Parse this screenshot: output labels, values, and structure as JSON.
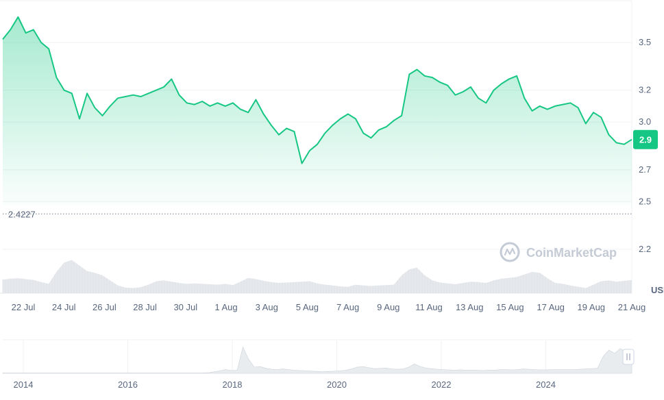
{
  "watermark": "CoinMarketCap",
  "currency": "USD",
  "colors": {
    "line": "#16c784",
    "area_top": "#16c784",
    "badge": "#16c784",
    "volume": "#e6e8ec",
    "grid": "#eff2f5",
    "nav_area": "#e9ecef",
    "baseline": "#707a8a"
  },
  "chart_data": {
    "type": "area",
    "title": "",
    "xlabel": "",
    "ylabel": "USD",
    "yticks": [
      "3.5",
      "3.2",
      "3.0",
      "2.7",
      "2.5",
      "2.2"
    ],
    "ytick_values": [
      3.5,
      3.2,
      3.0,
      2.7,
      2.5,
      2.2
    ],
    "ylim": [
      1.97,
      3.7
    ],
    "xticks": [
      "22 Jul",
      "24 Jul",
      "26 Jul",
      "28 Jul",
      "30 Jul",
      "1 Aug",
      "3 Aug",
      "5 Aug",
      "7 Aug",
      "9 Aug",
      "11 Aug",
      "13 Aug",
      "15 Aug",
      "17 Aug",
      "19 Aug",
      "21 Aug"
    ],
    "baseline": {
      "label": "2.4227",
      "value": 2.4227
    },
    "current_price_label": "2.9",
    "current_price": 2.89,
    "grid": true,
    "series": [
      {
        "values": [
          3.52,
          3.58,
          3.66,
          3.56,
          3.58,
          3.5,
          3.46,
          3.28,
          3.2,
          3.18,
          3.02,
          3.18,
          3.09,
          3.04,
          3.1,
          3.15,
          3.16,
          3.17,
          3.16,
          3.18,
          3.2,
          3.22,
          3.27,
          3.17,
          3.12,
          3.11,
          3.13,
          3.1,
          3.12,
          3.1,
          3.12,
          3.08,
          3.06,
          3.14,
          3.05,
          2.98,
          2.92,
          2.96,
          2.94,
          2.74,
          2.82,
          2.86,
          2.93,
          2.98,
          3.02,
          3.05,
          3.02,
          2.93,
          2.9,
          2.95,
          2.97,
          3.01,
          3.04,
          3.3,
          3.33,
          3.29,
          3.28,
          3.25,
          3.23,
          3.17,
          3.19,
          3.22,
          3.15,
          3.12,
          3.2,
          3.24,
          3.27,
          3.29,
          3.15,
          3.07,
          3.1,
          3.08,
          3.1,
          3.11,
          3.12,
          3.09,
          2.99,
          3.06,
          3.03,
          2.92,
          2.87,
          2.86,
          2.89
        ]
      }
    ],
    "volume": [
      0.32,
      0.34,
      0.35,
      0.33,
      0.31,
      0.26,
      0.22,
      0.5,
      0.72,
      0.78,
      0.65,
      0.52,
      0.48,
      0.42,
      0.3,
      0.18,
      0.13,
      0.12,
      0.14,
      0.2,
      0.28,
      0.3,
      0.27,
      0.24,
      0.22,
      0.23,
      0.22,
      0.21,
      0.2,
      0.22,
      0.19,
      0.27,
      0.36,
      0.33,
      0.29,
      0.26,
      0.24,
      0.25,
      0.26,
      0.27,
      0.28,
      0.23,
      0.2,
      0.18,
      0.16,
      0.15,
      0.2,
      0.18,
      0.17,
      0.18,
      0.19,
      0.2,
      0.42,
      0.56,
      0.6,
      0.42,
      0.3,
      0.25,
      0.23,
      0.21,
      0.24,
      0.27,
      0.26,
      0.24,
      0.3,
      0.34,
      0.36,
      0.38,
      0.44,
      0.5,
      0.48,
      0.35,
      0.24,
      0.22,
      0.18,
      0.15,
      0.12,
      0.2,
      0.28,
      0.3,
      0.27,
      0.29,
      0.31
    ]
  },
  "navigator": {
    "xticks": [
      "2014",
      "2016",
      "2018",
      "2020",
      "2022",
      "2024"
    ],
    "values": [
      0.01,
      0.01,
      0.01,
      0.01,
      0.01,
      0.01,
      0.01,
      0.01,
      0.01,
      0.01,
      0.01,
      0.01,
      0.01,
      0.01,
      0.01,
      0.01,
      0.01,
      0.01,
      0.01,
      0.01,
      0.01,
      0.01,
      0.01,
      0.01,
      0.01,
      0.01,
      0.01,
      0.01,
      0.01,
      0.01,
      0.01,
      0.01,
      0.01,
      0.01,
      0.01,
      0.01,
      0.02,
      0.05,
      0.08,
      0.12,
      0.09,
      0.1,
      0.85,
      0.45,
      0.2,
      0.22,
      0.16,
      0.13,
      0.12,
      0.14,
      0.12,
      0.1,
      0.09,
      0.08,
      0.07,
      0.06,
      0.05,
      0.06,
      0.07,
      0.08,
      0.1,
      0.14,
      0.2,
      0.22,
      0.18,
      0.15,
      0.16,
      0.17,
      0.14,
      0.13,
      0.14,
      0.2,
      0.3,
      0.22,
      0.17,
      0.15,
      0.13,
      0.12,
      0.11,
      0.1,
      0.11,
      0.1,
      0.1,
      0.1,
      0.09,
      0.1,
      0.1,
      0.12,
      0.12,
      0.11,
      0.12,
      0.14,
      0.13,
      0.12,
      0.11,
      0.11,
      0.12,
      0.12,
      0.12,
      0.12,
      0.12,
      0.13,
      0.14,
      0.15,
      0.16,
      0.55,
      0.75,
      0.65,
      0.8,
      0.7,
      0.62
    ]
  }
}
